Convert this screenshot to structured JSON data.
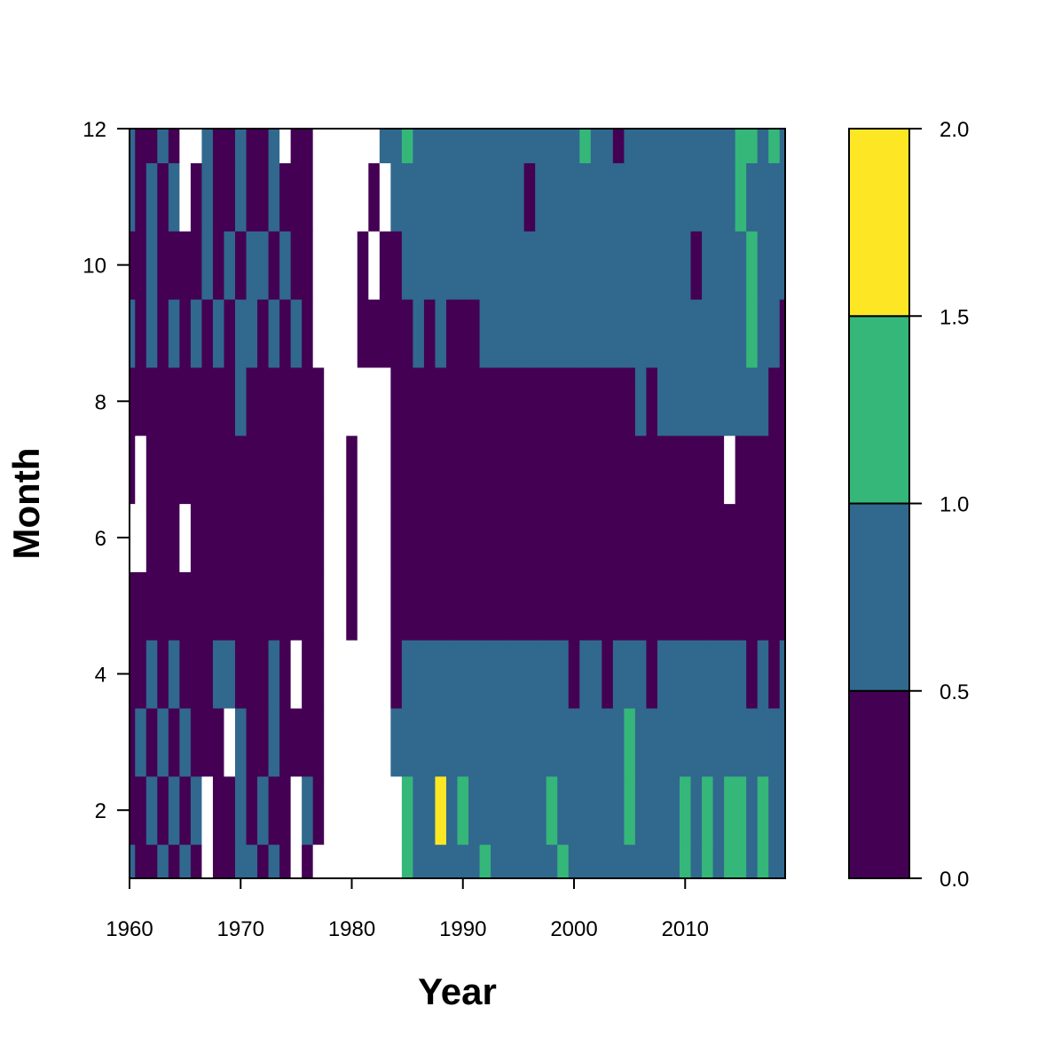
{
  "chart_data": {
    "type": "heatmap",
    "title": "",
    "xlabel": "Year",
    "ylabel": "Month",
    "xlim": [
      1960,
      2019
    ],
    "ylim": [
      1,
      12
    ],
    "x_ticks": [
      "1960",
      "1970",
      "1980",
      "1990",
      "2000",
      "2010"
    ],
    "y_ticks": [
      "2",
      "4",
      "6",
      "8",
      "10",
      "12"
    ],
    "legend": {
      "position": "right",
      "tick_labels": [
        "0.0",
        "0.5",
        "1.0",
        "1.5",
        "2.0"
      ],
      "breaks": [
        0.0,
        0.5,
        1.0,
        1.5,
        2.0
      ]
    },
    "colors": [
      "#440154",
      "#31688e",
      "#35b779",
      "#fde725"
    ],
    "missing_color": "#ffffff",
    "grid": false,
    "years": [
      1960,
      1961,
      1962,
      1963,
      1964,
      1965,
      1966,
      1967,
      1968,
      1969,
      1970,
      1971,
      1972,
      1973,
      1974,
      1975,
      1976,
      1977,
      1978,
      1979,
      1980,
      1981,
      1982,
      1983,
      1984,
      1985,
      1986,
      1987,
      1988,
      1989,
      1990,
      1991,
      1992,
      1993,
      1994,
      1995,
      1996,
      1997,
      1998,
      1999,
      2000,
      2001,
      2002,
      2003,
      2004,
      2005,
      2006,
      2007,
      2008,
      2009,
      2010,
      2011,
      2012,
      2013,
      2014,
      2015,
      2016,
      2017,
      2018,
      2019
    ],
    "months": [
      1,
      2,
      3,
      4,
      5,
      6,
      7,
      8,
      9,
      10,
      11,
      12
    ],
    "z_by_month": [
      [
        0.6,
        0.3,
        0.2,
        0.6,
        0.3,
        0.6,
        0.3,
        null,
        0.3,
        0.3,
        0.6,
        0.6,
        0.3,
        0.6,
        0.3,
        null,
        0.3,
        null,
        null,
        null,
        null,
        null,
        null,
        null,
        null,
        1.1,
        0.7,
        0.9,
        0.8,
        0.8,
        0.7,
        0.8,
        1.0,
        0.8,
        0.7,
        0.8,
        0.6,
        0.8,
        0.7,
        1.0,
        0.7,
        0.8,
        0.7,
        0.6,
        0.9,
        0.7,
        0.8,
        0.7,
        0.6,
        0.8,
        1.1,
        0.8,
        1.2,
        0.8,
        1.1,
        1.2,
        0.8,
        1.2,
        0.8,
        0.9
      ],
      [
        0.3,
        0.2,
        0.6,
        0.3,
        0.6,
        0.3,
        0.6,
        null,
        0.3,
        0.3,
        0.6,
        0.3,
        0.6,
        0.3,
        0.3,
        null,
        0.6,
        0.3,
        null,
        null,
        null,
        null,
        null,
        null,
        null,
        1.1,
        0.7,
        0.8,
        1.7,
        0.8,
        1.1,
        0.7,
        0.8,
        0.7,
        0.8,
        0.7,
        0.6,
        0.8,
        1.1,
        0.7,
        0.8,
        0.7,
        0.7,
        0.6,
        0.9,
        1.1,
        0.8,
        0.7,
        0.7,
        0.8,
        1.2,
        0.8,
        1.2,
        0.8,
        1.1,
        1.1,
        0.8,
        1.1,
        0.7,
        0.8
      ],
      [
        0.3,
        0.6,
        0.3,
        0.6,
        0.3,
        0.6,
        0.3,
        0.3,
        0.3,
        null,
        0.6,
        0.3,
        0.3,
        0.6,
        0.3,
        0.3,
        0.3,
        0.3,
        null,
        null,
        null,
        null,
        null,
        null,
        0.6,
        0.6,
        0.7,
        0.8,
        0.7,
        0.8,
        0.7,
        0.8,
        0.7,
        0.8,
        0.7,
        0.8,
        0.6,
        0.8,
        0.7,
        0.8,
        0.6,
        0.8,
        0.7,
        0.6,
        0.8,
        1.1,
        0.7,
        0.7,
        0.6,
        0.7,
        0.8,
        0.7,
        0.8,
        0.8,
        0.7,
        0.8,
        0.7,
        0.8,
        0.6,
        0.7
      ],
      [
        0.3,
        0.3,
        0.6,
        0.3,
        0.6,
        0.3,
        0.3,
        0.3,
        0.6,
        0.6,
        0.3,
        0.3,
        0.3,
        0.6,
        0.3,
        null,
        0.3,
        0.3,
        null,
        null,
        null,
        null,
        null,
        null,
        0.4,
        0.6,
        0.6,
        0.7,
        0.6,
        0.7,
        0.6,
        0.7,
        0.6,
        0.7,
        0.6,
        0.7,
        0.6,
        0.7,
        0.6,
        0.7,
        0.4,
        0.7,
        0.6,
        0.4,
        0.6,
        0.7,
        0.6,
        0.4,
        0.6,
        0.7,
        0.6,
        0.7,
        0.6,
        0.7,
        0.6,
        0.7,
        0.4,
        0.6,
        0.4,
        0.6
      ],
      [
        0.3,
        0.3,
        0.3,
        0.3,
        0.3,
        0.3,
        0.3,
        0.3,
        0.3,
        0.3,
        0.3,
        0.3,
        0.3,
        0.3,
        0.3,
        0.3,
        0.3,
        0.3,
        null,
        null,
        0.3,
        null,
        null,
        null,
        0.3,
        0.3,
        0.3,
        0.3,
        0.3,
        0.3,
        0.3,
        0.3,
        0.3,
        0.3,
        0.3,
        0.3,
        0.3,
        0.3,
        0.3,
        0.3,
        0.3,
        0.3,
        0.3,
        0.3,
        0.3,
        0.3,
        0.3,
        0.3,
        0.3,
        0.3,
        0.3,
        0.3,
        0.3,
        0.3,
        0.3,
        0.3,
        0.3,
        0.3,
        0.3,
        0.3
      ],
      [
        null,
        null,
        0.3,
        0.3,
        0.3,
        null,
        0.3,
        0.3,
        0.3,
        0.3,
        0.3,
        0.3,
        0.3,
        0.3,
        0.3,
        0.3,
        0.3,
        0.3,
        null,
        null,
        0.3,
        null,
        null,
        null,
        0.3,
        0.3,
        0.3,
        0.3,
        0.3,
        0.3,
        0.3,
        0.3,
        0.3,
        0.3,
        0.3,
        0.3,
        0.3,
        0.3,
        0.3,
        0.3,
        0.3,
        0.3,
        0.3,
        0.3,
        0.3,
        0.3,
        0.3,
        0.3,
        0.3,
        0.3,
        0.3,
        0.3,
        0.3,
        0.3,
        0.3,
        0.3,
        0.3,
        0.3,
        0.3,
        0.3
      ],
      [
        0.3,
        null,
        0.3,
        0.3,
        0.3,
        0.3,
        0.3,
        0.3,
        0.3,
        0.3,
        0.3,
        0.3,
        0.3,
        0.3,
        0.3,
        0.3,
        0.3,
        0.3,
        null,
        null,
        0.3,
        null,
        null,
        null,
        0.3,
        0.3,
        0.3,
        0.3,
        0.3,
        0.3,
        0.3,
        0.3,
        0.3,
        0.3,
        0.3,
        0.3,
        0.3,
        0.3,
        0.3,
        0.3,
        0.3,
        0.3,
        0.3,
        0.3,
        0.3,
        0.3,
        0.3,
        0.3,
        0.3,
        0.3,
        0.3,
        0.3,
        0.3,
        0.3,
        null,
        0.3,
        0.3,
        0.3,
        0.3,
        0.3
      ],
      [
        0.3,
        0.3,
        0.3,
        0.3,
        0.3,
        0.3,
        0.3,
        0.3,
        0.3,
        0.3,
        0.6,
        0.3,
        0.3,
        0.3,
        0.3,
        0.3,
        0.3,
        0.3,
        null,
        null,
        null,
        null,
        null,
        null,
        0.3,
        0.3,
        0.3,
        0.3,
        0.3,
        0.3,
        0.3,
        0.3,
        0.3,
        0.3,
        0.3,
        0.3,
        0.3,
        0.3,
        0.3,
        0.3,
        0.3,
        0.3,
        0.3,
        0.3,
        0.3,
        0.3,
        0.6,
        0.3,
        0.6,
        0.6,
        0.6,
        0.6,
        0.6,
        0.6,
        0.6,
        0.6,
        0.6,
        0.6,
        0.3,
        0.3
      ],
      [
        0.6,
        0.3,
        0.6,
        0.3,
        0.6,
        0.3,
        0.6,
        0.3,
        0.6,
        0.3,
        0.6,
        0.6,
        0.3,
        0.6,
        0.3,
        0.6,
        0.3,
        null,
        null,
        null,
        null,
        0.3,
        0.3,
        0.3,
        0.3,
        0.3,
        0.6,
        0.3,
        0.6,
        0.3,
        0.3,
        0.3,
        0.6,
        0.6,
        0.6,
        0.6,
        0.6,
        0.6,
        0.6,
        0.6,
        0.6,
        0.6,
        0.6,
        0.6,
        0.6,
        0.6,
        0.6,
        0.6,
        0.6,
        0.6,
        0.6,
        0.6,
        0.6,
        0.6,
        0.6,
        0.6,
        1.1,
        0.6,
        0.6,
        0.3
      ],
      [
        0.3,
        0.3,
        0.6,
        0.3,
        0.3,
        0.3,
        0.3,
        0.6,
        0.3,
        0.6,
        0.3,
        0.6,
        0.6,
        0.3,
        0.6,
        0.3,
        0.3,
        null,
        null,
        null,
        null,
        0.3,
        null,
        0.3,
        0.3,
        0.6,
        0.6,
        0.6,
        0.6,
        0.6,
        0.6,
        0.6,
        0.6,
        0.6,
        0.6,
        0.6,
        0.6,
        0.6,
        0.6,
        0.6,
        0.6,
        0.6,
        0.6,
        0.6,
        0.6,
        0.6,
        0.6,
        0.6,
        0.6,
        0.6,
        0.6,
        0.3,
        0.6,
        0.6,
        0.6,
        0.6,
        1.1,
        0.6,
        0.6,
        0.6
      ],
      [
        0.6,
        0.3,
        0.6,
        0.3,
        0.6,
        null,
        0.3,
        0.6,
        0.3,
        0.3,
        0.6,
        0.3,
        0.3,
        0.6,
        0.3,
        0.3,
        0.3,
        null,
        null,
        null,
        null,
        null,
        0.3,
        null,
        0.6,
        0.6,
        0.6,
        0.6,
        0.6,
        0.6,
        0.6,
        0.6,
        0.6,
        0.6,
        0.6,
        0.6,
        0.3,
        0.6,
        0.6,
        0.6,
        0.6,
        0.6,
        0.6,
        0.6,
        0.6,
        0.6,
        0.6,
        0.6,
        0.6,
        0.6,
        0.6,
        0.6,
        0.6,
        0.6,
        0.6,
        1.1,
        0.6,
        0.6,
        0.6,
        0.6
      ],
      [
        0.6,
        0.3,
        0.3,
        0.6,
        0.3,
        null,
        null,
        0.6,
        0.3,
        0.3,
        0.6,
        0.3,
        0.3,
        0.6,
        null,
        0.3,
        0.3,
        null,
        null,
        null,
        null,
        null,
        null,
        0.6,
        0.6,
        1.1,
        0.6,
        0.6,
        0.6,
        0.6,
        0.6,
        0.6,
        0.6,
        0.6,
        0.6,
        0.6,
        0.6,
        0.6,
        0.6,
        0.6,
        0.6,
        1.1,
        0.6,
        0.6,
        0.3,
        0.6,
        0.6,
        0.6,
        0.6,
        0.6,
        0.6,
        0.6,
        0.6,
        0.6,
        0.6,
        1.1,
        1.1,
        0.6,
        1.1,
        0.6
      ]
    ]
  }
}
